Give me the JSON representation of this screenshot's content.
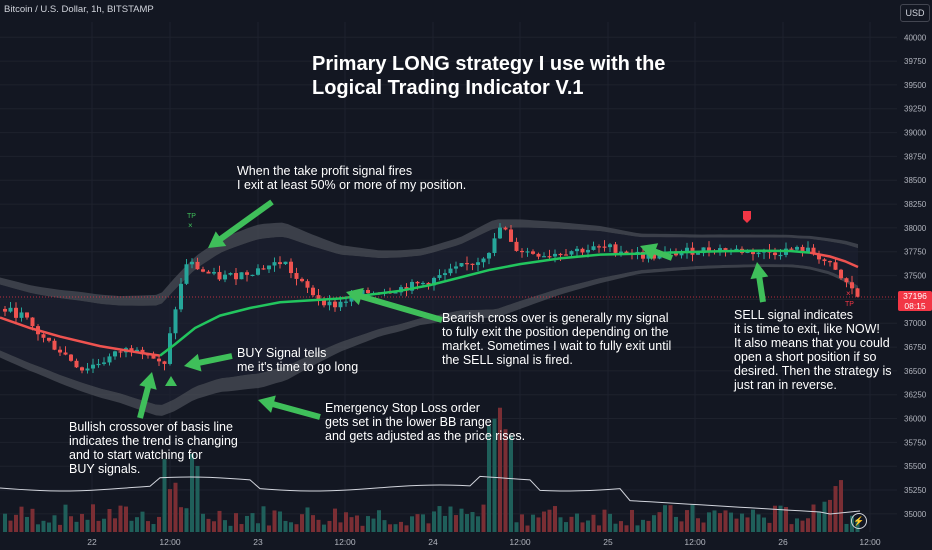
{
  "header": {
    "symbol": "Bitcoin / U.S. Dollar, 1h, BITSTAMP",
    "currency": "USD"
  },
  "title_lines": [
    "Primary LONG strategy I use with the",
    "Logical Trading Indicator V.1"
  ],
  "annotations": {
    "take_profit": [
      "When the take profit signal fires",
      "I exit at least 50% or more of my position."
    ],
    "bearish_cross": [
      "Bearish cross over is generally my signal",
      "to fully exit the position depending on the",
      "market. Sometimes I wait to fully exit until",
      "the SELL signal is fired."
    ],
    "buy_signal": [
      "BUY Signal tells",
      "me it's time to go long"
    ],
    "bullish_crossover": [
      "Bullish crossover of basis line",
      "indicates the trend is changing",
      "and to start watching for",
      "BUY signals."
    ],
    "stop_loss": [
      "Emergency Stop Loss order",
      "gets set in the lower BB range",
      "and gets adjusted as the price rises."
    ],
    "sell_signal": [
      "SELL signal indicates",
      "it is time to exit, like NOW!",
      "It also means that you could",
      "open a short position if so",
      "desired. Then the strategy is",
      "just ran in reverse."
    ],
    "tp_marker_1": "TP",
    "tp_marker_2": "TP"
  },
  "price_tag": {
    "price": "37196",
    "countdown": "08:15"
  },
  "colors": {
    "background": "#131722",
    "bull": "#26a69a",
    "bear": "#ef5350",
    "basis_up": "#22c55e",
    "basis_down": "#ef5350",
    "band_fill": "#4a4d57",
    "arrow": "#3fbf5a",
    "vol_bull": "#1f5f5a",
    "vol_bear": "#7a2e34",
    "grid": "#1e222d"
  },
  "icons": {
    "sell_flag": "red-flag-icon",
    "buy_marker": "green-triangle-icon",
    "tp_marker": "x-icon",
    "clock": "clock-icon"
  },
  "chart_data": {
    "type": "candlestick",
    "title": "Primary LONG strategy I use with the Logical Trading Indicator V.1",
    "y_axis": {
      "ticks": [
        40000,
        39750,
        39500,
        39250,
        39000,
        38750,
        38500,
        38250,
        38000,
        37750,
        37500,
        37250,
        37000,
        36750,
        36500,
        36250,
        36000,
        35750,
        35500,
        35250,
        35000
      ],
      "range": [
        34810,
        40160
      ]
    },
    "x_axis": {
      "ticks": [
        "22",
        "12:00",
        "23",
        "12:00",
        "24",
        "12:00",
        "25",
        "12:00",
        "26",
        "12:00"
      ]
    },
    "last_price": 37196,
    "series": [
      {
        "name": "Price (BTC/USD 1h)",
        "approx_close_path": [
          37150,
          37080,
          36900,
          36750,
          36500,
          36550,
          36700,
          36750,
          36600,
          36500,
          37200,
          37700,
          37600,
          37500,
          37600,
          37650,
          37550,
          37400,
          37150,
          37250,
          37300,
          37350,
          37450,
          37600,
          37900,
          37800,
          37750,
          37800,
          37780,
          37750,
          37770,
          37760,
          37800,
          37750,
          37600,
          37450,
          37200
        ]
      },
      {
        "name": "Basis (midline)",
        "approx_path": [
          37050,
          36900,
          36800,
          36700,
          36620,
          36600,
          36800,
          37000,
          37150,
          37220,
          37250,
          37280,
          37330,
          37400,
          37500,
          37600,
          37680,
          37720,
          37740,
          37750,
          37760,
          37770,
          37730,
          37650
        ]
      }
    ]
  }
}
